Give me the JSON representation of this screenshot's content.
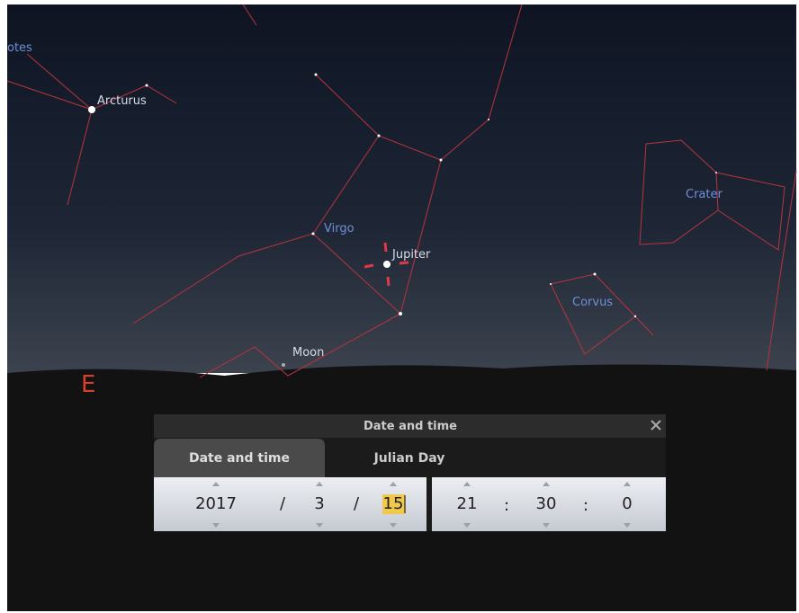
{
  "sky": {
    "labels": {
      "bootes": "otes",
      "arcturus": "Arcturus",
      "virgo": "Virgo",
      "jupiter": "Jupiter",
      "moon": "Moon",
      "crater": "Crater",
      "corvus": "Corvus"
    },
    "cardinal": "E"
  },
  "dialog": {
    "title": "Date and time",
    "tabs": [
      "Date and time",
      "Julian Day"
    ],
    "date": {
      "year": "2017",
      "sep1": "/",
      "month": "3",
      "sep2": "/",
      "day": "15"
    },
    "time": {
      "hour": "21",
      "sep1": ":",
      "minute": "30",
      "sep2": ":",
      "second": "0"
    }
  }
}
